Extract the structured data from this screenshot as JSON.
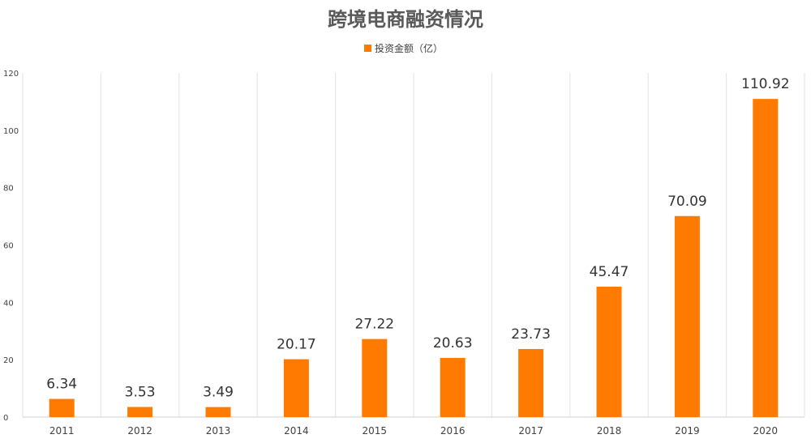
{
  "chart_data": {
    "type": "bar",
    "title": "跨境电商融资情况",
    "categories": [
      "2011",
      "2012",
      "2013",
      "2014",
      "2015",
      "2016",
      "2017",
      "2018",
      "2019",
      "2020"
    ],
    "series": [
      {
        "name": "投资金额（亿）",
        "values": [
          6.34,
          3.53,
          3.49,
          20.17,
          27.22,
          20.63,
          23.73,
          45.47,
          70.09,
          110.92
        ],
        "color": "#FF7A00"
      }
    ],
    "value_labels": [
      "6.34",
      "3.53",
      "3.49",
      "20.17",
      "27.22",
      "20.63",
      "23.73",
      "45.47",
      "70.09",
      "110.92"
    ],
    "ylim": [
      0,
      120
    ],
    "yticks": [
      0,
      20,
      40,
      60,
      80,
      100,
      120
    ],
    "grid": "vertical",
    "legend": "top-center",
    "xlabel": "",
    "ylabel": ""
  }
}
